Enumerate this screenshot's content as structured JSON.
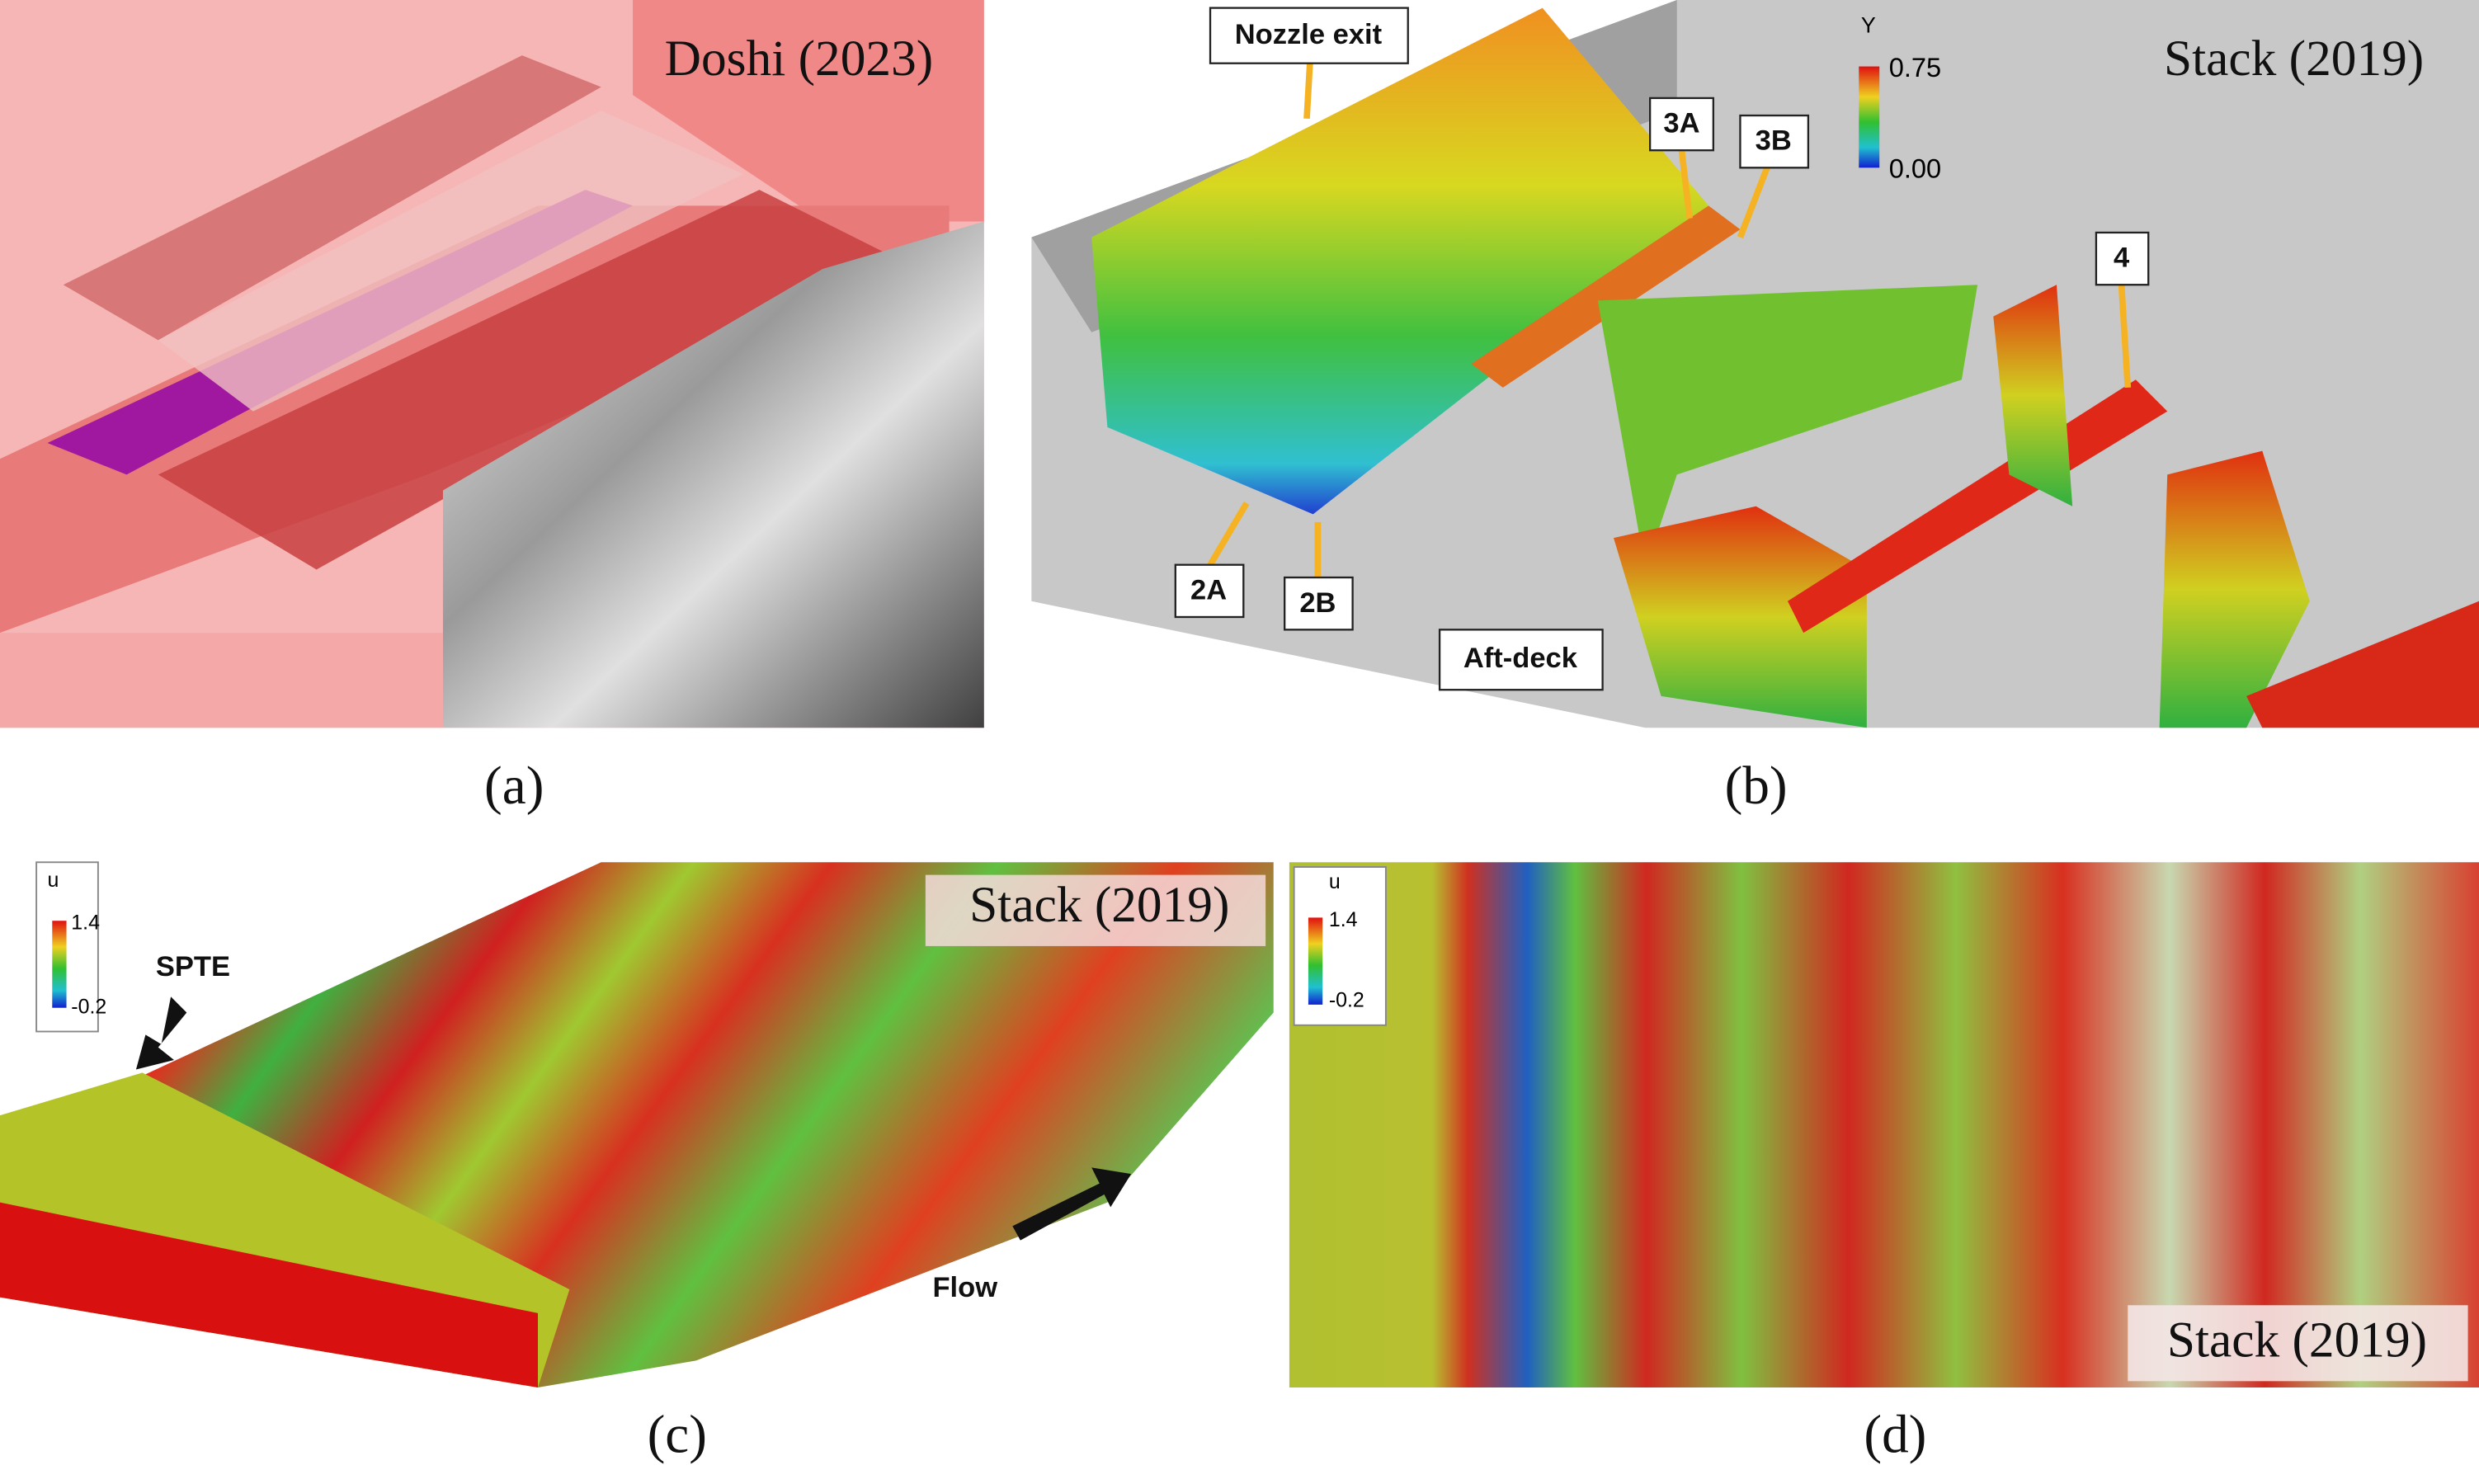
{
  "panels": [
    {
      "label": "(a)",
      "credit": "Doshi (2023)"
    },
    {
      "label": "(b)",
      "credit": "Stack (2019)",
      "colorbar": {
        "title": "Y",
        "max": "0.75",
        "min": "0.00"
      },
      "annotations": [
        "Nozzle exit",
        "3A",
        "3B",
        "4",
        "2A",
        "2B",
        "Aft-deck"
      ]
    },
    {
      "label": "(c)",
      "credit": "Stack (2019)",
      "colorbar": {
        "title": "u",
        "max": "1.4",
        "min": "-0.2"
      },
      "annotations": [
        "SPTE",
        "Flow"
      ]
    },
    {
      "label": "(d)",
      "credit": "Stack (2019)",
      "colorbar": {
        "title": "u",
        "max": "1.4",
        "min": "-0.2"
      }
    }
  ]
}
